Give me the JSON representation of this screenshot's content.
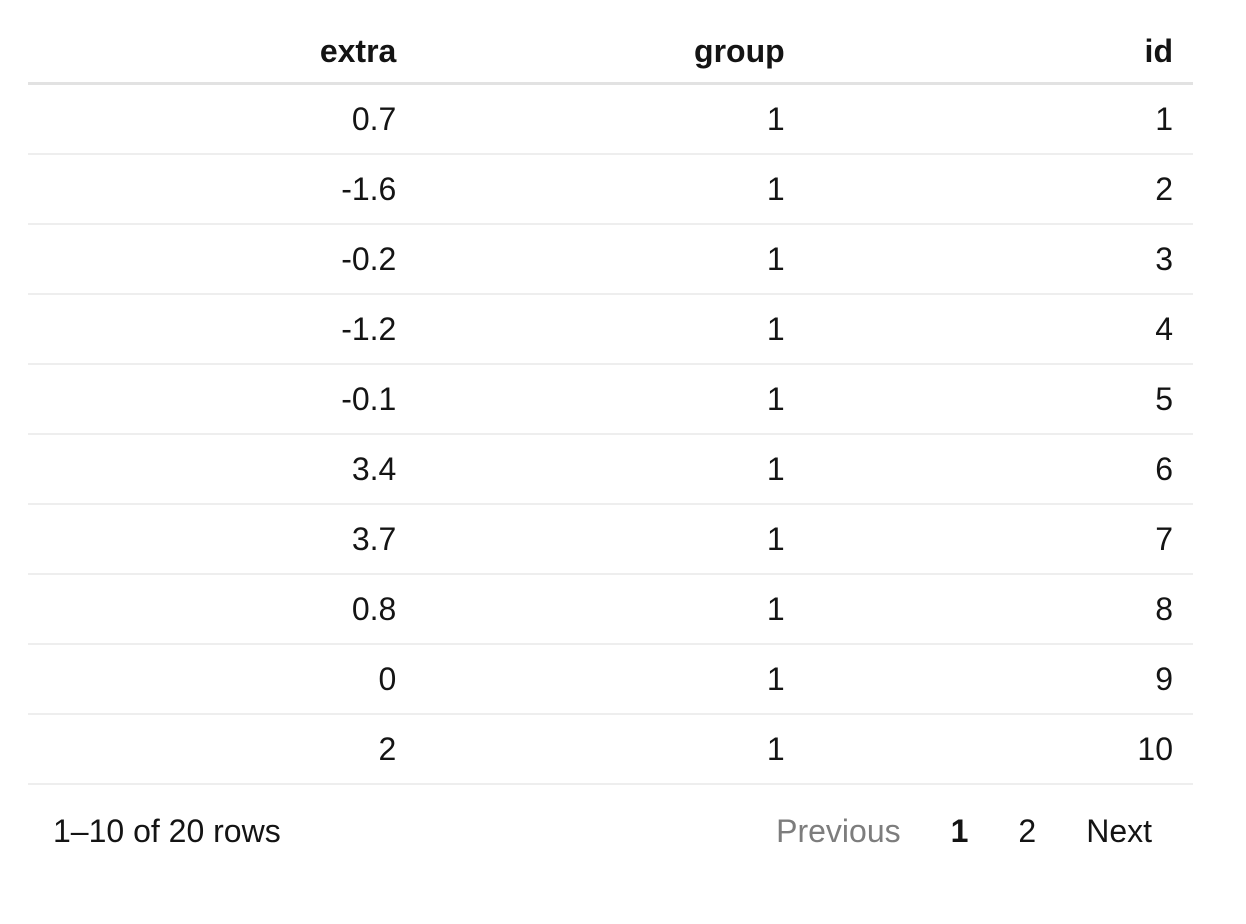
{
  "table": {
    "columns": [
      {
        "label": "extra"
      },
      {
        "label": "group"
      },
      {
        "label": "id"
      }
    ],
    "rows": [
      {
        "extra": "0.7",
        "group": "1",
        "id": "1"
      },
      {
        "extra": "-1.6",
        "group": "1",
        "id": "2"
      },
      {
        "extra": "-0.2",
        "group": "1",
        "id": "3"
      },
      {
        "extra": "-1.2",
        "group": "1",
        "id": "4"
      },
      {
        "extra": "-0.1",
        "group": "1",
        "id": "5"
      },
      {
        "extra": "3.4",
        "group": "1",
        "id": "6"
      },
      {
        "extra": "3.7",
        "group": "1",
        "id": "7"
      },
      {
        "extra": "0.8",
        "group": "1",
        "id": "8"
      },
      {
        "extra": "0",
        "group": "1",
        "id": "9"
      },
      {
        "extra": "2",
        "group": "1",
        "id": "10"
      }
    ]
  },
  "pagination": {
    "info": "1–10 of 20 rows",
    "previous_label": "Previous",
    "pages": [
      {
        "label": "1",
        "current": true
      },
      {
        "label": "2",
        "current": false
      }
    ],
    "next_label": "Next",
    "current_page": "1"
  },
  "colors": {
    "header_border": "#e2e2e2",
    "row_border": "#eeeeee",
    "text": "#141414",
    "disabled_text": "#7d7d7d",
    "background": "#ffffff"
  }
}
